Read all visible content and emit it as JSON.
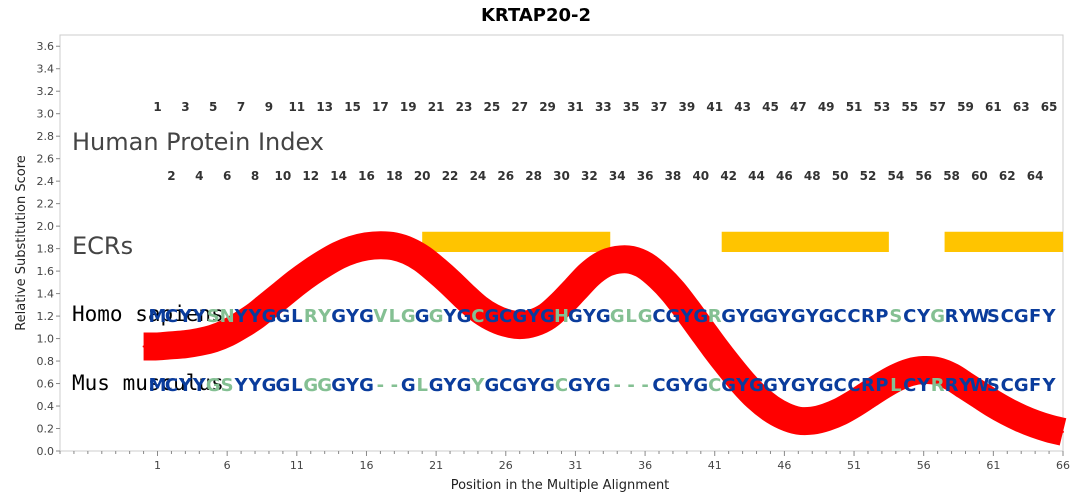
{
  "chart_data": {
    "type": "line",
    "title": "KRTAP20-2",
    "xlabel": "Position in the Multiple Alignment",
    "ylabel": "Relative Substitution Score",
    "xlim": [
      -6,
      66
    ],
    "ylim": [
      0,
      3.7
    ],
    "x_ticks": [
      1,
      6,
      11,
      16,
      21,
      26,
      31,
      36,
      41,
      46,
      51,
      56,
      61,
      66
    ],
    "y_ticks": [
      0.0,
      0.2,
      0.4,
      0.6,
      0.8,
      1.0,
      1.2,
      1.4,
      1.6,
      1.8,
      2.0,
      2.2,
      2.4,
      2.6,
      2.8,
      3.0,
      3.2,
      3.4,
      3.6
    ],
    "series": [
      {
        "color": "#ff0000",
        "x": [
          0,
          1,
          2,
          3,
          4,
          5,
          6,
          7,
          8,
          9,
          10,
          11,
          12,
          13,
          14,
          15,
          16,
          17,
          18,
          19,
          20,
          21,
          22,
          23,
          24,
          25,
          26,
          27,
          28,
          29,
          30,
          31,
          32,
          33,
          34,
          35,
          36,
          37,
          38,
          39,
          40,
          41,
          42,
          43,
          44,
          45,
          46,
          47,
          48,
          49,
          50,
          51,
          52,
          53,
          54,
          55,
          56,
          57,
          58,
          59,
          60,
          61,
          62,
          63,
          64,
          65,
          66
        ],
        "y": [
          0.93,
          0.93,
          0.94,
          0.95,
          0.97,
          1.0,
          1.05,
          1.12,
          1.2,
          1.3,
          1.4,
          1.5,
          1.59,
          1.67,
          1.74,
          1.79,
          1.82,
          1.83,
          1.82,
          1.78,
          1.71,
          1.61,
          1.5,
          1.38,
          1.27,
          1.19,
          1.14,
          1.12,
          1.14,
          1.2,
          1.31,
          1.44,
          1.57,
          1.66,
          1.7,
          1.7,
          1.65,
          1.55,
          1.42,
          1.26,
          1.09,
          0.92,
          0.76,
          0.61,
          0.48,
          0.38,
          0.31,
          0.27,
          0.27,
          0.3,
          0.35,
          0.42,
          0.5,
          0.58,
          0.65,
          0.7,
          0.72,
          0.71,
          0.66,
          0.58,
          0.5,
          0.42,
          0.35,
          0.29,
          0.24,
          0.2,
          0.17
        ]
      }
    ],
    "ecrs": [
      [
        20,
        33.5
      ],
      [
        41.5,
        53.5
      ],
      [
        57.5,
        66
      ]
    ],
    "ecr_color": "#ffc400"
  },
  "labels": {
    "human_protein_index": "Human Protein Index",
    "ecrs": "ECRs",
    "homo_sapiens": "Homo sapiens",
    "mus_musculus": "Mus musculus"
  },
  "index_numbers": {
    "odd": [
      "1",
      "3",
      "5",
      "7",
      "9",
      "11",
      "13",
      "15",
      "17",
      "19",
      "21",
      "23",
      "25",
      "27",
      "29",
      "31",
      "33",
      "35",
      "37",
      "39",
      "41",
      "43",
      "45",
      "47",
      "49",
      "51",
      "53",
      "55",
      "57",
      "59",
      "61",
      "63",
      "65"
    ],
    "even": [
      "2",
      "4",
      "6",
      "8",
      "10",
      "12",
      "14",
      "16",
      "18",
      "20",
      "22",
      "24",
      "26",
      "28",
      "30",
      "32",
      "34",
      "36",
      "38",
      "40",
      "42",
      "44",
      "46",
      "48",
      "50",
      "52",
      "54",
      "56",
      "58",
      "60",
      "62",
      "64"
    ]
  },
  "sequences": {
    "colors": {
      "conserved": "#0a3c9c",
      "variable": "#84c093",
      "gap": "#84c093"
    },
    "homo_sapiens": {
      "chars": "MCYYSNYYGGLRYGYGVLGGGYGCGCGYGHGYGGLGCGYGRGYGGYGYGCCRPSCYGRYWSCGFY",
      "classes": "CCCCVVCCCCCVVCCCVVVCVCCVCCCCCVCCCVVVCCCCVCCCCCCCCCCCCVCCVCCCCCCCC"
    },
    "mus_musculus": {
      "chars": "MCYYGSYYGGLGGGYG--GLGYGYGCGYGCGYG---CGYGCGYGGYGYGCCRPLCYRRYWSCGFY",
      "classes": "CCCCVVCCCCCVVCCCGGCVCCCVCCCCCVCCCGGGCCCCVCCCCCCCCCCCCVCCVCCCCCCCC"
    }
  }
}
